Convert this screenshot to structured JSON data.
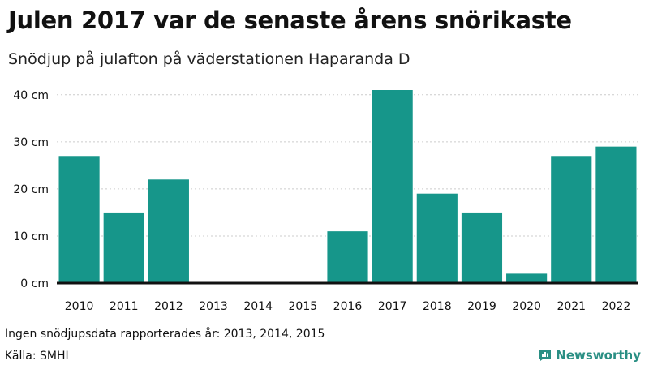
{
  "header": {
    "title": "Julen 2017 var de senaste årens snörikaste",
    "subtitle": "Snödjup på julafton på väderstationen Haparanda D"
  },
  "footer": {
    "note": "Ingen snödjupsdata rapporterades år: 2013, 2014, 2015",
    "source": "Källa: SMHI",
    "brand": "Newsworthy",
    "brand_icon": "bar-chart-speech-bubble-icon"
  },
  "colors": {
    "bar": "#16968a",
    "baseline": "#111111",
    "grid": "#cccccc",
    "brand": "#2a8f84"
  },
  "chart_data": {
    "type": "bar",
    "title": "Julen 2017 var de senaste årens snörikaste",
    "subtitle": "Snödjup på julafton på väderstationen Haparanda D",
    "categories": [
      "2010",
      "2011",
      "2012",
      "2013",
      "2014",
      "2015",
      "2016",
      "2017",
      "2018",
      "2019",
      "2020",
      "2021",
      "2022"
    ],
    "values": [
      27,
      15,
      22,
      null,
      null,
      null,
      11,
      41,
      19,
      15,
      2,
      27,
      29
    ],
    "yticks": [
      0,
      10,
      20,
      30,
      40
    ],
    "ytick_labels": [
      "0 cm",
      "10 cm",
      "20 cm",
      "30 cm",
      "40 cm"
    ],
    "ylim": [
      0,
      41
    ],
    "xlabel": "",
    "ylabel": "",
    "grid": true
  }
}
